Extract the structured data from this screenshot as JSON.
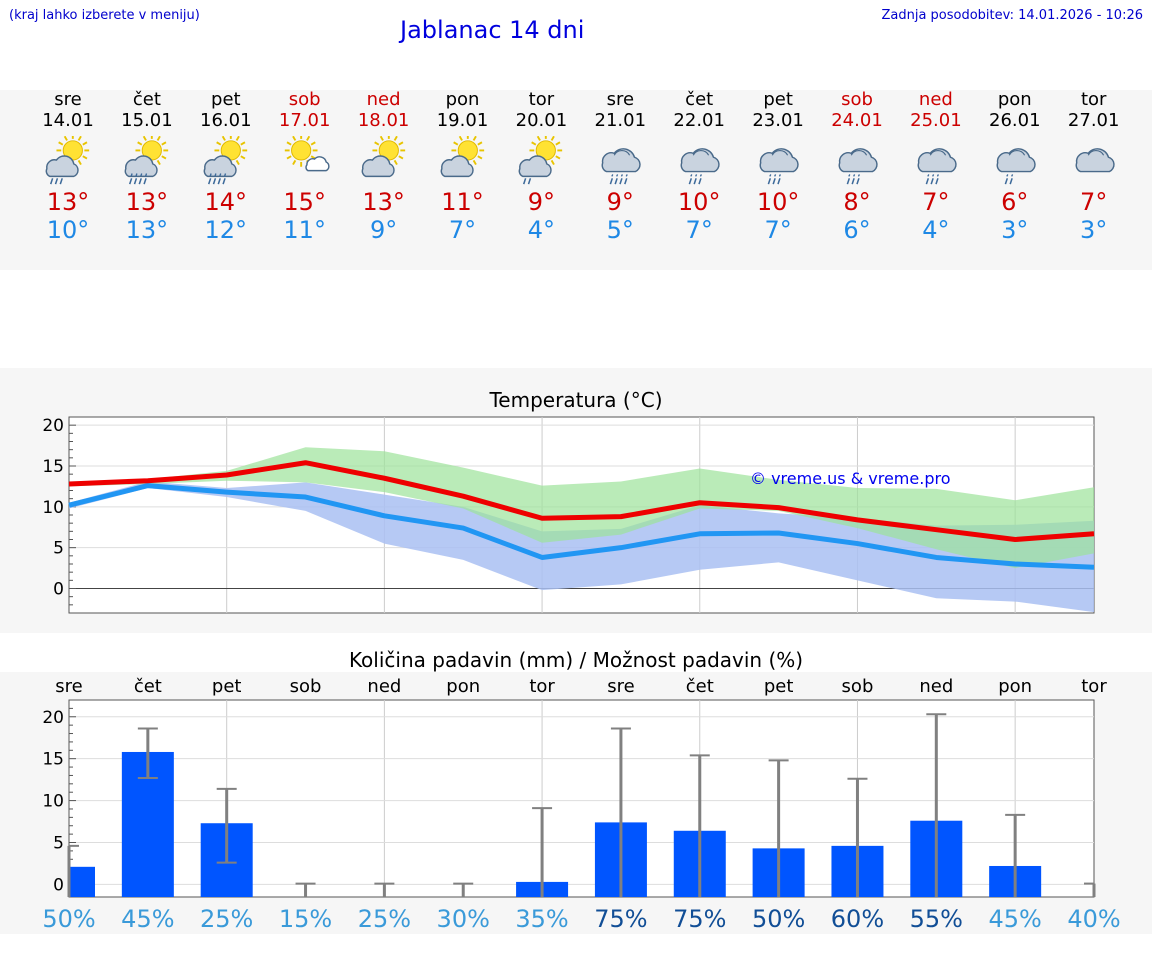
{
  "header": {
    "location_hint": "(kraj lahko izberete v meniju)",
    "title": "Jablanac 14 dni",
    "updated": "Zadnja posodobitev: 14.01.2026 - 10:26"
  },
  "forecast": [
    {
      "day": "sre",
      "date": "14.01",
      "weekend": false,
      "icon": "sun-cloud-rain-icon",
      "max": "13°",
      "min": "10°"
    },
    {
      "day": "čet",
      "date": "15.01",
      "weekend": false,
      "icon": "sun-cloud-heavy-rain-icon",
      "max": "13°",
      "min": "13°"
    },
    {
      "day": "pet",
      "date": "16.01",
      "weekend": false,
      "icon": "sun-cloud-heavy-rain-icon",
      "max": "14°",
      "min": "12°"
    },
    {
      "day": "sob",
      "date": "17.01",
      "weekend": true,
      "icon": "sun-small-cloud-icon",
      "max": "15°",
      "min": "11°"
    },
    {
      "day": "ned",
      "date": "18.01",
      "weekend": true,
      "icon": "sun-cloud-icon",
      "max": "13°",
      "min": "9°"
    },
    {
      "day": "pon",
      "date": "19.01",
      "weekend": false,
      "icon": "sun-cloud-icon",
      "max": "11°",
      "min": "7°"
    },
    {
      "day": "tor",
      "date": "20.01",
      "weekend": false,
      "icon": "sun-cloud-drizzle-icon",
      "max": "9°",
      "min": "4°"
    },
    {
      "day": "sre",
      "date": "21.01",
      "weekend": false,
      "icon": "cloud-heavy-rain-icon",
      "max": "9°",
      "min": "5°"
    },
    {
      "day": "čet",
      "date": "22.01",
      "weekend": false,
      "icon": "cloud-rain-icon",
      "max": "10°",
      "min": "7°"
    },
    {
      "day": "pet",
      "date": "23.01",
      "weekend": false,
      "icon": "cloud-rain-icon",
      "max": "10°",
      "min": "7°"
    },
    {
      "day": "sob",
      "date": "24.01",
      "weekend": true,
      "icon": "cloud-rain-icon",
      "max": "8°",
      "min": "6°"
    },
    {
      "day": "ned",
      "date": "25.01",
      "weekend": true,
      "icon": "cloud-rain-icon",
      "max": "7°",
      "min": "4°"
    },
    {
      "day": "pon",
      "date": "26.01",
      "weekend": false,
      "icon": "cloud-drizzle-icon",
      "max": "6°",
      "min": "3°"
    },
    {
      "day": "tor",
      "date": "27.01",
      "weekend": false,
      "icon": "cloud-icon",
      "max": "7°",
      "min": "3°"
    }
  ],
  "colors": {
    "max_line": "#ee0000",
    "min_line": "#2196f3",
    "max_band": "#9de39a",
    "min_band": "#a9bff2",
    "overlap_band": "#6fc3a2",
    "precip_bar": "#0055ff",
    "error_bar": "#808080",
    "prob_low": "#3a9ad9",
    "prob_high": "#114e96"
  },
  "chart_data": [
    {
      "type": "line",
      "title": "Temperatura (°C)",
      "watermark": "© vreme.us & vreme.pro",
      "ylim": [
        -3,
        21
      ],
      "yticks": [
        "20",
        "15",
        "10",
        "5",
        "0"
      ],
      "ytick_values": [
        20,
        15,
        10,
        5,
        0
      ],
      "x": [
        0,
        1,
        2,
        3,
        4,
        5,
        6,
        7,
        8,
        9,
        10,
        11,
        12,
        13
      ],
      "series": [
        {
          "name": "max",
          "values": [
            12.8,
            13.2,
            13.9,
            15.4,
            13.5,
            11.3,
            8.6,
            8.8,
            10.5,
            9.9,
            8.4,
            7.2,
            6.0,
            6.7
          ]
        },
        {
          "name": "min",
          "values": [
            10.2,
            12.6,
            11.8,
            11.2,
            8.9,
            7.4,
            3.8,
            5.0,
            6.7,
            6.8,
            5.5,
            3.8,
            3.0,
            2.6
          ]
        },
        {
          "name": "max_range_high",
          "values": [
            13.0,
            13.4,
            14.4,
            17.3,
            16.8,
            14.8,
            12.6,
            13.1,
            14.7,
            13.3,
            12.3,
            12.2,
            10.8,
            12.4
          ]
        },
        {
          "name": "max_range_low",
          "values": [
            12.5,
            12.8,
            13.2,
            13.0,
            11.8,
            9.8,
            5.6,
            6.6,
            9.8,
            9.5,
            7.4,
            4.8,
            2.5,
            4.3
          ]
        },
        {
          "name": "min_range_high",
          "values": [
            10.5,
            13.1,
            12.3,
            13.0,
            11.5,
            10.0,
            7.0,
            7.3,
            10.2,
            9.2,
            8.6,
            7.7,
            7.8,
            8.3
          ]
        },
        {
          "name": "min_range_low",
          "values": [
            9.8,
            12.3,
            11.2,
            9.5,
            5.5,
            3.5,
            -0.2,
            0.5,
            2.3,
            3.2,
            1.0,
            -1.2,
            -1.6,
            -2.9
          ]
        }
      ]
    },
    {
      "type": "bar",
      "title": "Količina padavin (mm) / Možnost padavin (%)",
      "categories": [
        "sre",
        "čet",
        "pet",
        "sob",
        "ned",
        "pon",
        "tor",
        "sre",
        "čet",
        "pet",
        "sob",
        "ned",
        "pon",
        "tor"
      ],
      "ylim": [
        -1.5,
        22
      ],
      "yticks": [
        "20",
        "15",
        "10",
        "5",
        "0"
      ],
      "ytick_values": [
        20,
        15,
        10,
        5,
        0
      ],
      "values": [
        2.1,
        15.8,
        7.3,
        0,
        0,
        0,
        0.3,
        7.4,
        6.4,
        4.3,
        4.6,
        7.6,
        2.2,
        0
      ],
      "error_low": [
        null,
        12.7,
        2.6,
        null,
        null,
        null,
        null,
        null,
        null,
        null,
        null,
        null,
        null,
        null
      ],
      "error_high": [
        4.6,
        18.6,
        11.4,
        0.1,
        0.1,
        0.1,
        9.1,
        18.6,
        15.4,
        14.8,
        12.6,
        20.3,
        8.3,
        0.1
      ],
      "probabilities": [
        "50%",
        "45%",
        "25%",
        "15%",
        "25%",
        "30%",
        "35%",
        "75%",
        "75%",
        "50%",
        "60%",
        "55%",
        "45%",
        "40%"
      ],
      "probability_values": [
        50,
        45,
        25,
        15,
        25,
        30,
        35,
        75,
        75,
        50,
        60,
        55,
        45,
        40
      ]
    }
  ]
}
